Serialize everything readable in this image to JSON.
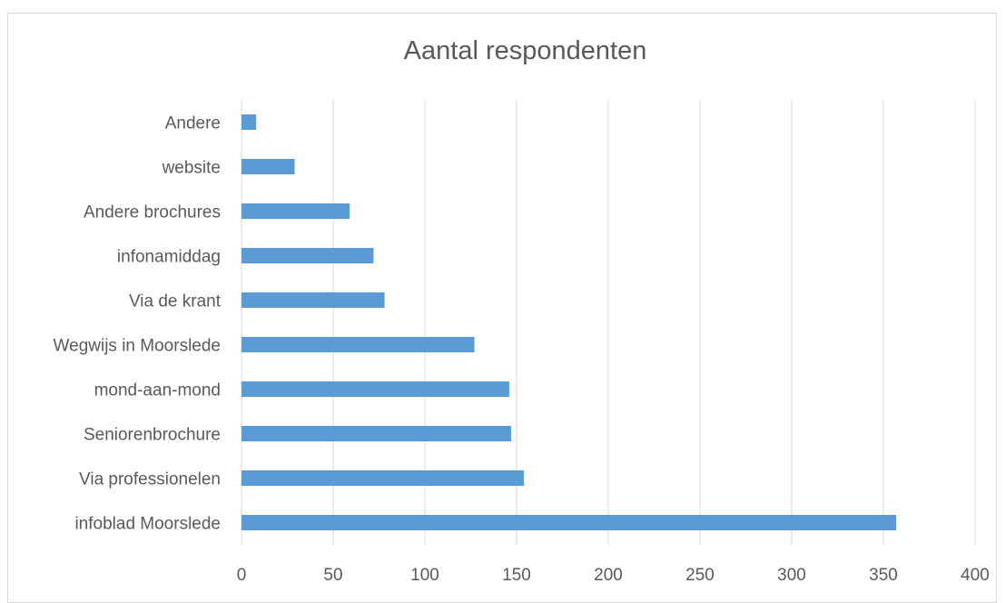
{
  "chart_data": {
    "type": "bar",
    "orientation": "horizontal",
    "title": "Aantal respondenten",
    "xlabel": "",
    "ylabel": "",
    "categories": [
      "infoblad Moorslede",
      "Via professionelen",
      "Seniorenbrochure",
      "mond-aan-mond",
      "Wegwijs in Moorslede",
      "Via de krant",
      "infonamiddag",
      "Andere brochures",
      "website",
      "Andere"
    ],
    "values": [
      357,
      154,
      147,
      146,
      127,
      78,
      72,
      59,
      29,
      8
    ],
    "xlim": [
      0,
      400
    ],
    "xticks": [
      "0",
      "50",
      "100",
      "150",
      "200",
      "250",
      "300",
      "350",
      "400"
    ],
    "grid": "vertical",
    "legend": "none",
    "bar_color": "#5b9bd5",
    "grid_color": "#d9d9d9"
  }
}
